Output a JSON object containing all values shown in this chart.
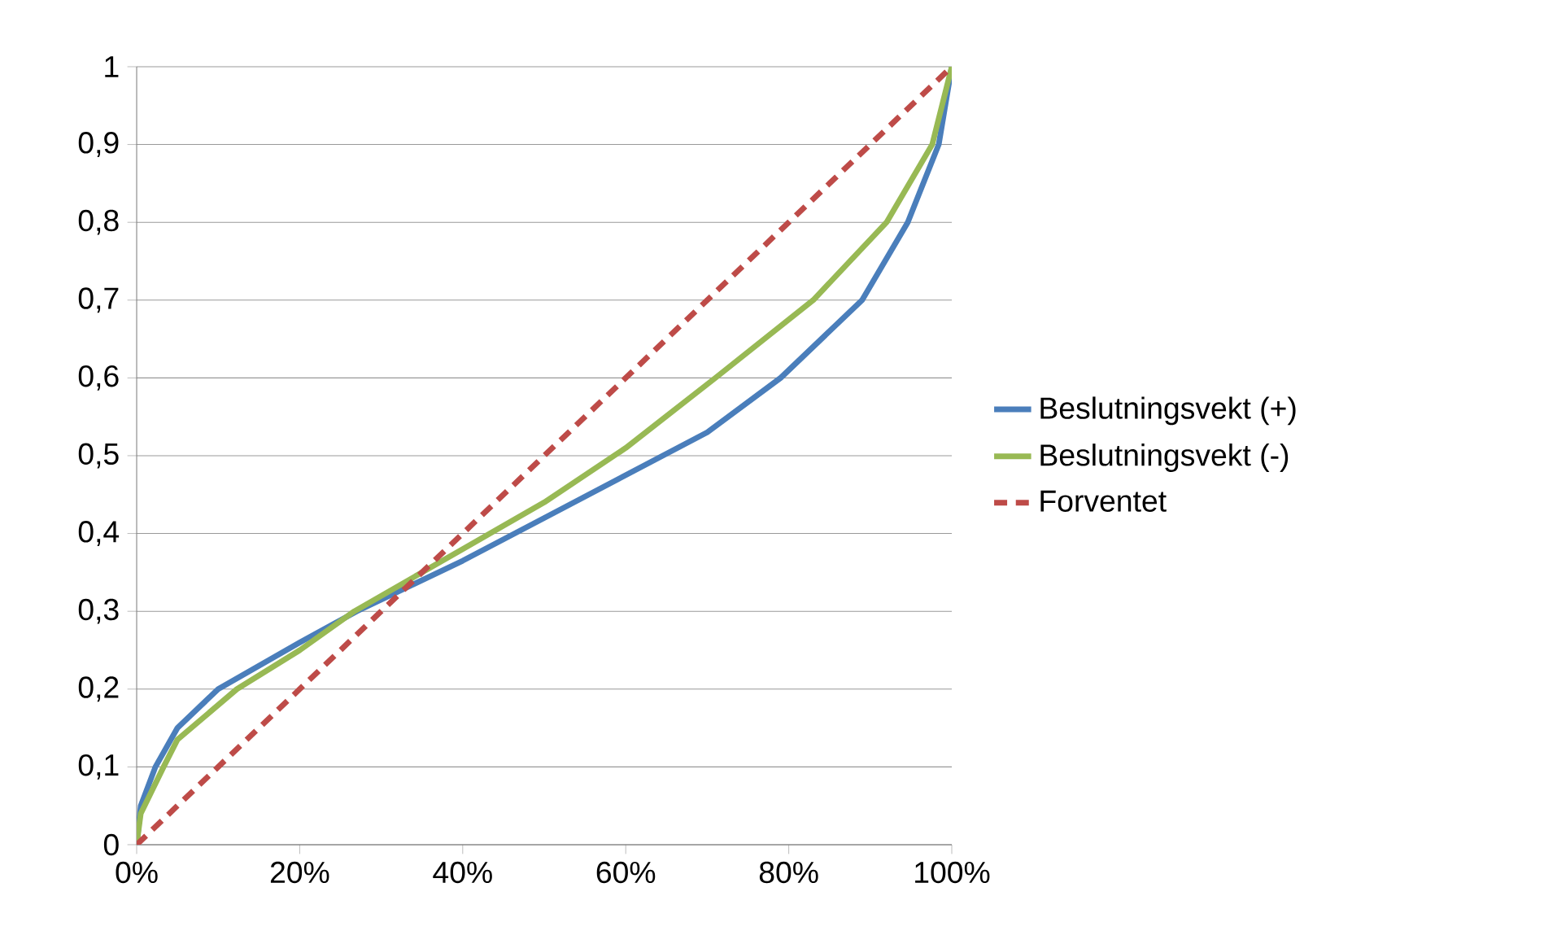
{
  "chart_data": {
    "type": "line",
    "xlim": [
      0,
      100
    ],
    "xticks": [
      {
        "value": 0,
        "label": "0%"
      },
      {
        "value": 20,
        "label": "20%"
      },
      {
        "value": 40,
        "label": "40%"
      },
      {
        "value": 60,
        "label": "60%"
      },
      {
        "value": 80,
        "label": "80%"
      },
      {
        "value": 100,
        "label": "100%"
      }
    ],
    "ylim": [
      0,
      1
    ],
    "yticks": [
      0,
      {
        "value": 0.1,
        "label": "0,1"
      },
      {
        "value": 0.2,
        "label": "0,2"
      },
      {
        "value": 0.3,
        "label": "0,3"
      },
      {
        "value": 0.4,
        "label": "0,4"
      },
      {
        "value": 0.5,
        "label": "0,5"
      },
      {
        "value": 0.6,
        "label": "0,6"
      },
      {
        "value": 0.7,
        "label": "0,7"
      },
      {
        "value": 0.8,
        "label": "0,8"
      },
      {
        "value": 0.9,
        "label": "0,9"
      },
      1
    ],
    "grid": "y",
    "legend": "right",
    "marker": "none",
    "series": [
      {
        "name": "Beslutningsvekt (+)",
        "color": "#4a7ebb",
        "line_style": "solid",
        "x": [
          0,
          0.5,
          2.3,
          5,
          10,
          20,
          27,
          40,
          50,
          60,
          70,
          79,
          89,
          94.6,
          98.4,
          100
        ],
        "values": [
          0,
          0.05,
          0.1,
          0.15,
          0.2,
          0.26,
          0.3,
          0.365,
          0.42,
          0.475,
          0.53,
          0.6,
          0.7,
          0.8,
          0.9,
          1
        ]
      },
      {
        "name": "Beslutningsvekt (-)",
        "color": "#98b954",
        "line_style": "solid",
        "x": [
          0,
          0.5,
          3.3,
          5,
          12.3,
          20,
          26.7,
          40,
          50,
          60,
          71,
          83,
          92,
          97.6,
          100
        ],
        "values": [
          0,
          0.04,
          0.1,
          0.135,
          0.2,
          0.25,
          0.3,
          0.38,
          0.44,
          0.51,
          0.6,
          0.7,
          0.8,
          0.9,
          1
        ]
      },
      {
        "name": "Forventet",
        "color": "#be4b48",
        "line_style": "dashed",
        "x": [
          0,
          100
        ],
        "values": [
          0,
          1
        ]
      }
    ]
  }
}
